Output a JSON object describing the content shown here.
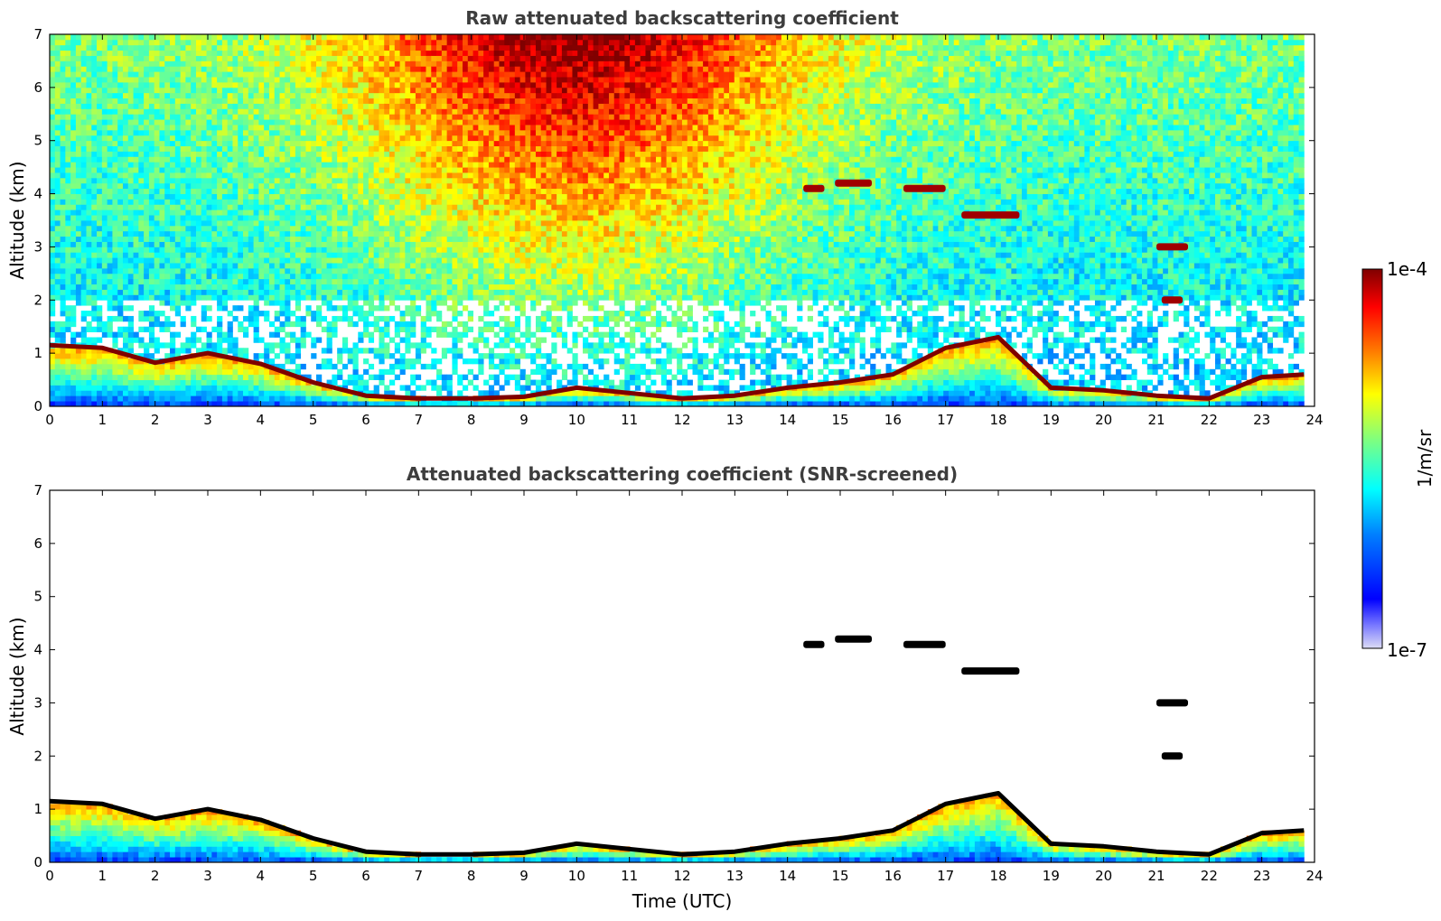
{
  "chart_data": [
    {
      "type": "heatmap",
      "title": "Raw attenuated backscattering coefficient",
      "xlabel": "",
      "ylabel": "Altitude (km)",
      "xlim": [
        0,
        24
      ],
      "ylim": [
        0,
        7
      ],
      "xticks": [
        "0",
        "1",
        "2",
        "3",
        "4",
        "5",
        "6",
        "7",
        "8",
        "9",
        "10",
        "11",
        "12",
        "13",
        "14",
        "15",
        "16",
        "17",
        "18",
        "19",
        "20",
        "21",
        "22",
        "23",
        "24"
      ],
      "yticks": [
        "0",
        "1",
        "2",
        "3",
        "4",
        "5",
        "6",
        "7"
      ],
      "data_end_time": 23.8,
      "screened": false,
      "layers": [
        {
          "x": [
            0,
            1,
            2,
            3,
            4,
            5,
            6,
            7,
            8,
            9,
            10,
            11,
            12,
            13,
            14,
            15,
            16,
            17,
            18,
            19,
            20,
            21,
            22,
            23,
            23.8
          ],
          "y": [
            1.15,
            1.1,
            0.82,
            1.0,
            0.8,
            0.45,
            0.2,
            0.15,
            0.15,
            0.18,
            0.35,
            0.25,
            0.15,
            0.2,
            0.35,
            0.45,
            0.6,
            1.1,
            1.3,
            0.35,
            0.3,
            0.2,
            0.15,
            0.55,
            0.6
          ]
        }
      ],
      "elevated_clouds": [
        {
          "x_start": 14.3,
          "x_end": 14.7,
          "altitude": 4.1
        },
        {
          "x_start": 14.9,
          "x_end": 15.6,
          "altitude": 4.2
        },
        {
          "x_start": 16.2,
          "x_end": 17.0,
          "altitude": 4.1
        },
        {
          "x_start": 17.3,
          "x_end": 18.4,
          "altitude": 3.6
        },
        {
          "x_start": 21.0,
          "x_end": 21.6,
          "altitude": 3.0
        },
        {
          "x_start": 21.1,
          "x_end": 21.5,
          "altitude": 2.0
        }
      ]
    },
    {
      "type": "heatmap",
      "title": "Attenuated backscattering coefficient (SNR-screened)",
      "xlabel": "Time (UTC)",
      "ylabel": "Altitude (km)",
      "xlim": [
        0,
        24
      ],
      "ylim": [
        0,
        7
      ],
      "xticks": [
        "0",
        "1",
        "2",
        "3",
        "4",
        "5",
        "6",
        "7",
        "8",
        "9",
        "10",
        "11",
        "12",
        "13",
        "14",
        "15",
        "16",
        "17",
        "18",
        "19",
        "20",
        "21",
        "22",
        "23",
        "24"
      ],
      "yticks": [
        "0",
        "1",
        "2",
        "3",
        "4",
        "5",
        "6",
        "7"
      ],
      "data_end_time": 23.8,
      "screened": true,
      "layers": [
        {
          "x": [
            0,
            1,
            2,
            3,
            4,
            5,
            6,
            7,
            8,
            9,
            10,
            11,
            12,
            13,
            14,
            15,
            16,
            17,
            18,
            19,
            20,
            21,
            22,
            23,
            23.8
          ],
          "y": [
            1.15,
            1.1,
            0.82,
            1.0,
            0.8,
            0.45,
            0.2,
            0.15,
            0.15,
            0.18,
            0.35,
            0.25,
            0.15,
            0.2,
            0.35,
            0.45,
            0.6,
            1.1,
            1.3,
            0.35,
            0.3,
            0.2,
            0.15,
            0.55,
            0.6
          ]
        }
      ],
      "elevated_clouds": [
        {
          "x_start": 14.3,
          "x_end": 14.7,
          "altitude": 4.1
        },
        {
          "x_start": 14.9,
          "x_end": 15.6,
          "altitude": 4.2
        },
        {
          "x_start": 16.2,
          "x_end": 17.0,
          "altitude": 4.1
        },
        {
          "x_start": 17.3,
          "x_end": 18.4,
          "altitude": 3.6
        },
        {
          "x_start": 21.0,
          "x_end": 21.6,
          "altitude": 3.0
        },
        {
          "x_start": 21.1,
          "x_end": 21.5,
          "altitude": 2.0
        }
      ]
    }
  ],
  "colorbar": {
    "label": "1/m/sr",
    "max_label": "1e-4",
    "min_label": "1e-7",
    "colormap": "jet",
    "colors": [
      "#7f0000",
      "#ff0000",
      "#ff7f00",
      "#ffff00",
      "#7fff7f",
      "#00ffff",
      "#007fff",
      "#0000ff",
      "#00007f"
    ]
  }
}
